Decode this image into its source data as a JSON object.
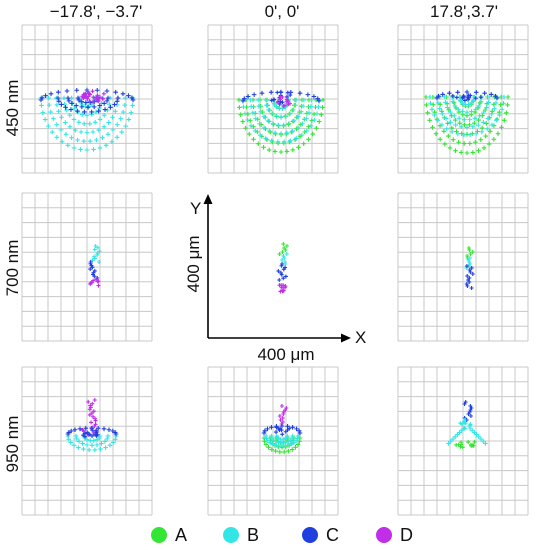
{
  "column_headers": [
    "−17.8', −3.7'",
    "0', 0'",
    "17.8',3.7'"
  ],
  "row_labels": [
    "450 nm",
    "700 nm",
    "950 nm"
  ],
  "axes": {
    "y_arrow_label": "Y",
    "x_arrow_label": "X",
    "y_scale_label": "400 μm",
    "x_scale_label": "400 μm"
  },
  "legend": [
    {
      "key": "A",
      "color": "#33e633"
    },
    {
      "key": "B",
      "color": "#33e6e6"
    },
    {
      "key": "C",
      "color": "#1f3fe0"
    },
    {
      "key": "D",
      "color": "#c02ee8"
    }
  ]
}
